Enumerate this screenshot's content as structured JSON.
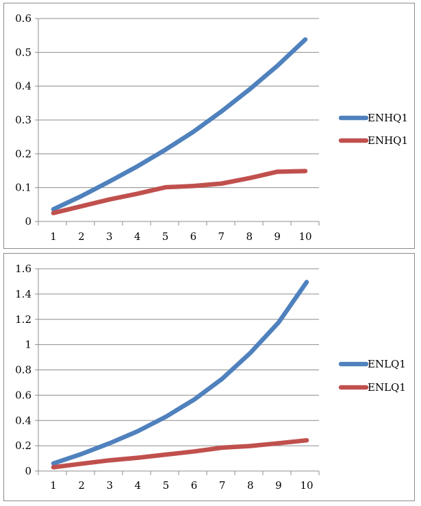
{
  "chart_data": [
    {
      "type": "line",
      "title": "",
      "xlabel": "",
      "ylabel": "",
      "categories": [
        "1",
        "2",
        "3",
        "4",
        "5",
        "6",
        "7",
        "8",
        "9",
        "10"
      ],
      "ylim": [
        0,
        0.6
      ],
      "yticks": [
        "0",
        "0.1",
        "0.2",
        "0.3",
        "0.4",
        "0.5",
        "0.6"
      ],
      "grid": true,
      "legend": "right",
      "series": [
        {
          "name": "ENHQ1",
          "color": "#4f81bd",
          "values": [
            0.036,
            0.075,
            0.118,
            0.163,
            0.212,
            0.265,
            0.325,
            0.39,
            0.46,
            0.538
          ]
        },
        {
          "name": "ENHQ1",
          "color": "#c0504d",
          "values": [
            0.025,
            0.045,
            0.065,
            0.082,
            0.101,
            0.105,
            0.112,
            0.128,
            0.147,
            0.149
          ]
        }
      ]
    },
    {
      "type": "line",
      "title": "",
      "xlabel": "",
      "ylabel": "",
      "categories": [
        "1",
        "2",
        "3",
        "4",
        "5",
        "6",
        "7",
        "8",
        "9",
        "10"
      ],
      "ylim": [
        0,
        1.6
      ],
      "yticks": [
        "0",
        "0.2",
        "0.4",
        "0.6",
        "0.8",
        "1",
        "1.2",
        "1.4",
        "1.6"
      ],
      "grid": true,
      "legend": "right",
      "series": [
        {
          "name": "ENLQ1",
          "color": "#4f81bd",
          "values": [
            0.06,
            0.135,
            0.22,
            0.315,
            0.43,
            0.565,
            0.73,
            0.935,
            1.175,
            1.495
          ]
        },
        {
          "name": "ENLQ1",
          "color": "#c0504d",
          "values": [
            0.03,
            0.058,
            0.085,
            0.105,
            0.13,
            0.155,
            0.185,
            0.198,
            0.22,
            0.243
          ]
        }
      ]
    }
  ]
}
